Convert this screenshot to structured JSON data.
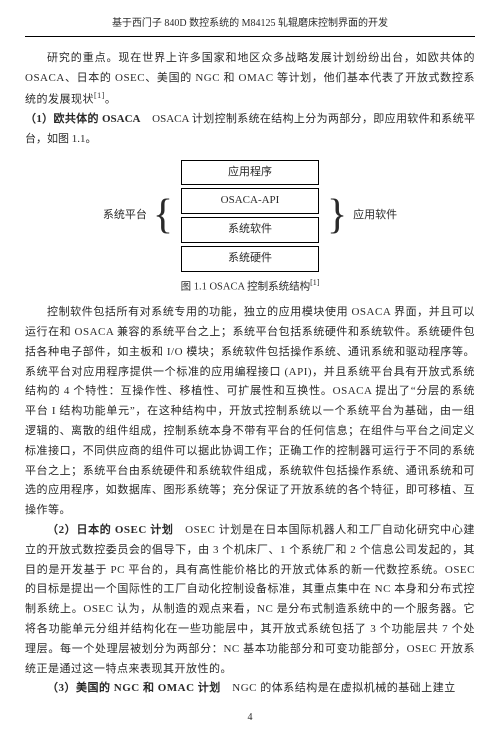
{
  "header": {
    "title": "基于西门子 840D 数控系统的 M84125 轧辊磨床控制界面的开发"
  },
  "paragraphs": {
    "p1": "研究的重点。现在世界上许多国家和地区众多战略发展计划纷纷出台，如欧共体的 OSACA、日本的 OSEC、美国的 NGC 和 OMAC 等计划，他们基本代表了开放式数控系统的发展现状",
    "p1_ref": "[1]",
    "p1_end": "。",
    "s1_head": "（1）欧共体的 OSACA",
    "s1_text": "　OSACA 计划控制系统在结构上分为两部分，即应用软件和系统平台，如图 1.1。",
    "caption": "图 1.1 OSACA 控制系统结构",
    "caption_ref": "[1]",
    "p2": "控制软件包括所有对系统专用的功能，独立的应用模块使用 OSACA 界面，并且可以运行在和 OSACA 兼容的系统平台之上；系统平台包括系统硬件和系统软件。系统硬件包括各种电子部件，如主板和 I/O 模块；系统软件包括操作系统、通讯系统和驱动程序等。系统平台对应用程序提供一个标准的应用编程接口 (API)，并且系统平台具有开放式系统结构的 4 个特性：互操作性、移植性、可扩展性和互换性。OSACA 提出了“分层的系统平台 I 结构功能单元”，在这种结构中，开放式控制系统以一个系统平台为基础，由一组逻辑的、离散的组件组成，控制系统本身不带有平台的任何信息；在组件与平台之间定义标准接口，不同供应商的组件可以据此协调工作；正确工作的控制器可运行于不同的系统平台之上；系统平台由系统硬件和系统软件组成，系统软件包括操作系统、通讯系统和可选的应用程序，如数据库、图形系统等；充分保证了开放系统的各个特征，即可移植、互 操作等。",
    "s2_head": "（2）日本的 OSEC 计划",
    "s2_text": "　OSEC 计划是在日本国际机器人和工厂自动化研究中心建立的开放式数控委员会的倡导下，由 3 个机床厂、1 个系统厂和 2 个信息公司发起的，其目的是开发基于 PC 平台的，具有高性能价格比的开放式体系的新一代数控系统。OSEC 的目标是提出一个国际性的工厂自动化控制设备标准，其重点集中在 NC 本身和分布式控制系统上。OSEC 认为，从制造的观点来看，NC 是分布式制造系统中的一个服务器。它将各功能单元分组并结构化在一些功能层中，其开放式系统包括了 3 个功能层共 7 个处理层。每一个处理层被划分为两部分：NC 基本功能部分和可变功能部分，OSEC 开放系统正是通过这一特点来表现其开放性的。",
    "s3_head": "（3）美国的 NGC 和 OMAC 计划",
    "s3_text": "　NGC 的体系结构是在虚拟机械的基础上建立"
  },
  "diagram": {
    "left_label": "系统平台",
    "right_label": "应用软件",
    "boxes": [
      "应用程序",
      "OSACA-API",
      "系统软件",
      "系统硬件"
    ]
  },
  "page_number": "4"
}
